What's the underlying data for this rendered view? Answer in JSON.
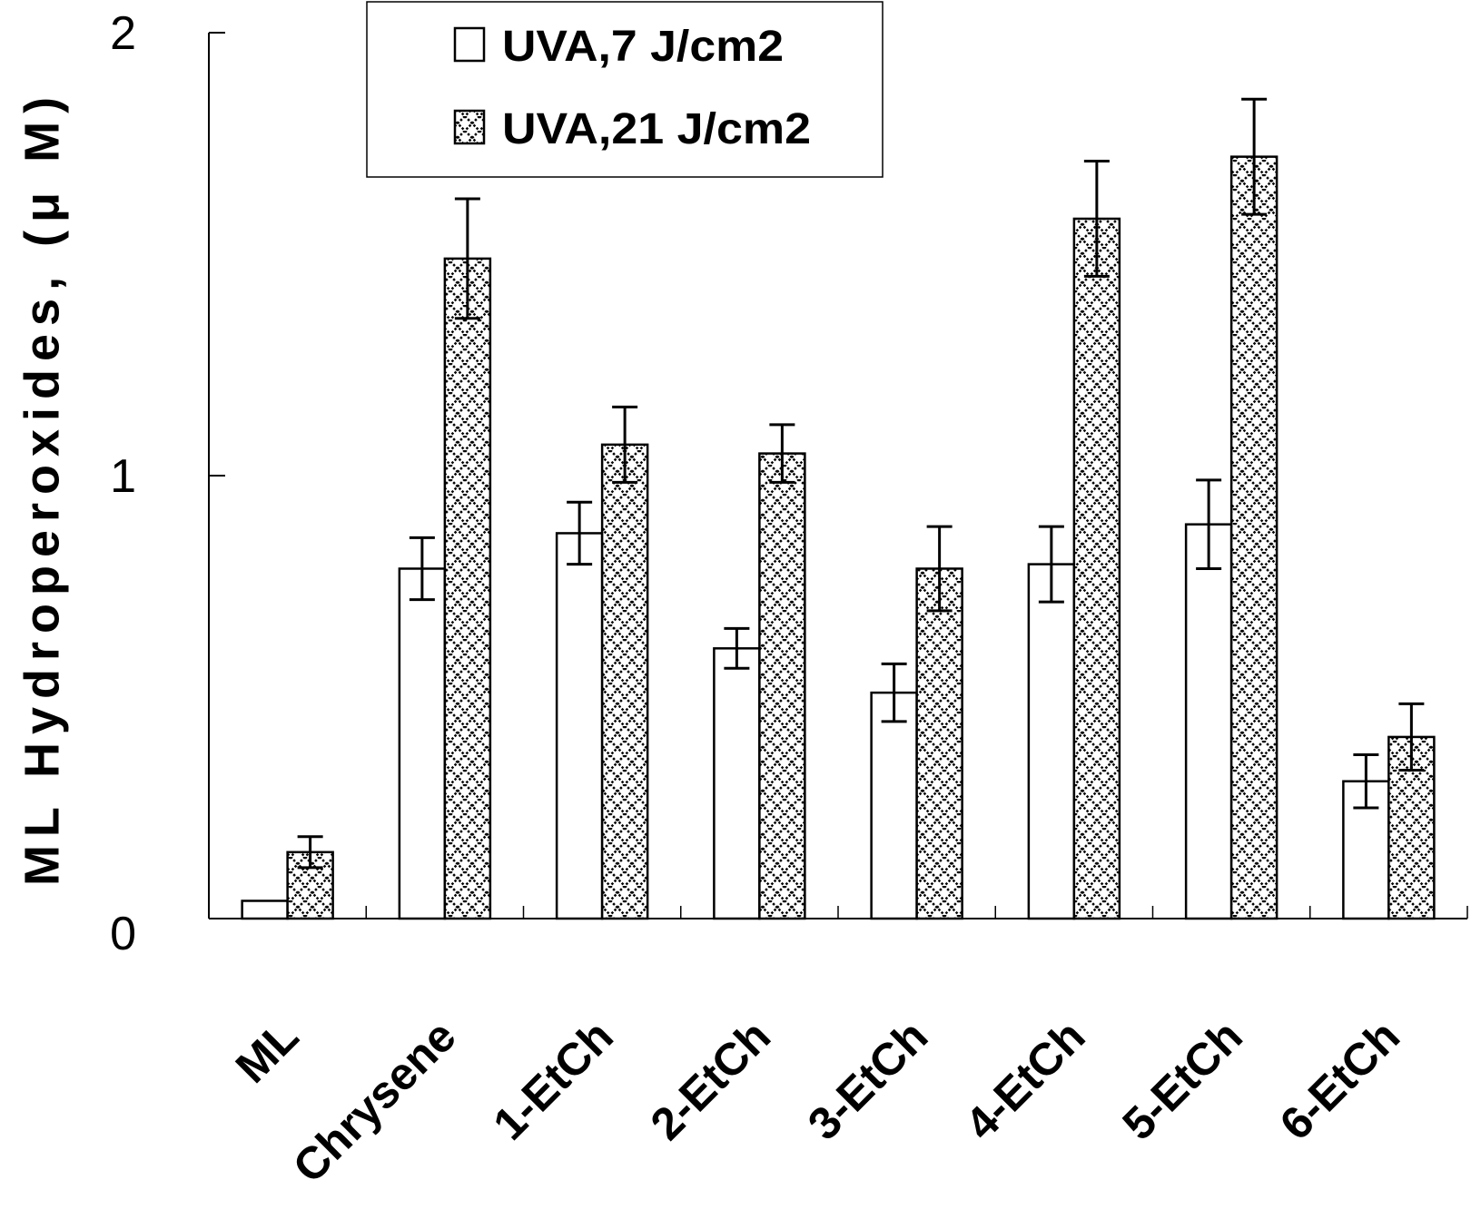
{
  "chart_data": {
    "type": "bar",
    "title": "",
    "xlabel": "",
    "ylabel": "ML Hydroperoxides, (μ M)",
    "ylim": [
      0,
      2
    ],
    "yticks": [
      "0",
      "1",
      "2"
    ],
    "categories": [
      "ML",
      "Chrysene",
      "1-EtCh",
      "2-EtCh",
      "3-EtCh",
      "4-EtCh",
      "5-EtCh",
      "6-EtCh"
    ],
    "series": [
      {
        "name": "UVA,7 J/cm2",
        "pattern": "open",
        "values": [
          0.04,
          0.79,
          0.87,
          0.61,
          0.51,
          0.8,
          0.89,
          0.31
        ],
        "errors": [
          0.0,
          0.07,
          0.07,
          0.045,
          0.065,
          0.085,
          0.1,
          0.06
        ]
      },
      {
        "name": "UVA,21 J/cm2",
        "pattern": "crosshatch",
        "values": [
          0.15,
          1.49,
          1.07,
          1.05,
          0.79,
          1.58,
          1.72,
          0.41
        ],
        "errors": [
          0.035,
          0.135,
          0.085,
          0.065,
          0.095,
          0.13,
          0.13,
          0.075
        ]
      }
    ],
    "legend": "top-center",
    "grid": false
  }
}
